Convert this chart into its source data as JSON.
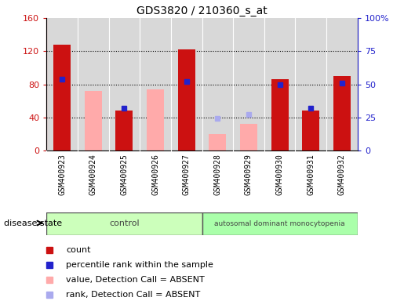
{
  "title": "GDS3820 / 210360_s_at",
  "samples": [
    "GSM400923",
    "GSM400924",
    "GSM400925",
    "GSM400926",
    "GSM400927",
    "GSM400928",
    "GSM400929",
    "GSM400930",
    "GSM400931",
    "GSM400932"
  ],
  "count": [
    128,
    null,
    48,
    null,
    122,
    null,
    null,
    86,
    48,
    90
  ],
  "percentile_rank": [
    54,
    null,
    32,
    null,
    52,
    null,
    null,
    50,
    32,
    51
  ],
  "value_absent": [
    null,
    72,
    null,
    74,
    null,
    20,
    32,
    null,
    null,
    null
  ],
  "rank_absent": [
    null,
    null,
    null,
    null,
    null,
    24,
    27,
    null,
    null,
    null
  ],
  "ylim_left": [
    0,
    160
  ],
  "ylim_right": [
    0,
    100
  ],
  "left_ticks": [
    0,
    40,
    80,
    120,
    160
  ],
  "right_ticks": [
    0,
    25,
    50,
    75,
    100
  ],
  "right_tick_labels": [
    "0",
    "25",
    "50",
    "75",
    "100%"
  ],
  "color_count": "#cc1111",
  "color_percentile": "#2222cc",
  "color_value_absent": "#ffaaaa",
  "color_rank_absent": "#aaaaee",
  "color_control_bg": "#ccffbb",
  "color_disease_bg": "#aaffaa",
  "color_col_bg": "#d8d8d8",
  "bar_width": 0.55,
  "label_count": "count",
  "label_percentile": "percentile rank within the sample",
  "label_value_absent": "value, Detection Call = ABSENT",
  "label_rank_absent": "rank, Detection Call = ABSENT",
  "n_control": 5,
  "n_disease": 5
}
